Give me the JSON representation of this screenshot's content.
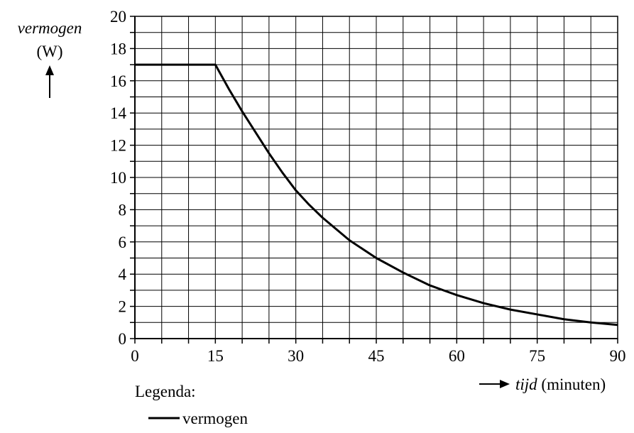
{
  "chart_data": {
    "type": "line",
    "ylabel_name": "vermogen",
    "ylabel_unit": "(W)",
    "xlabel_name": "tijd",
    "xlabel_unit": "(minuten)",
    "xlim": [
      0,
      90
    ],
    "ylim": [
      0,
      20
    ],
    "x_ticks": [
      0,
      15,
      30,
      45,
      60,
      75,
      90
    ],
    "y_ticks": [
      0,
      2,
      4,
      6,
      8,
      10,
      12,
      14,
      16,
      18,
      20
    ],
    "grid": true,
    "legend_title": "Legenda:",
    "series": [
      {
        "name": "vermogen",
        "color": "#000000",
        "x": [
          0,
          15,
          17.5,
          20,
          22.5,
          25,
          27.5,
          30,
          32.5,
          35,
          37.5,
          40,
          45,
          50,
          55,
          60,
          65,
          70,
          75,
          80,
          85,
          90
        ],
        "y": [
          17.0,
          17.0,
          15.5,
          14.1,
          12.8,
          11.5,
          10.3,
          9.2,
          8.3,
          7.5,
          6.8,
          6.1,
          5.0,
          4.1,
          3.3,
          2.7,
          2.2,
          1.8,
          1.5,
          1.2,
          1.0,
          0.85
        ]
      }
    ]
  }
}
